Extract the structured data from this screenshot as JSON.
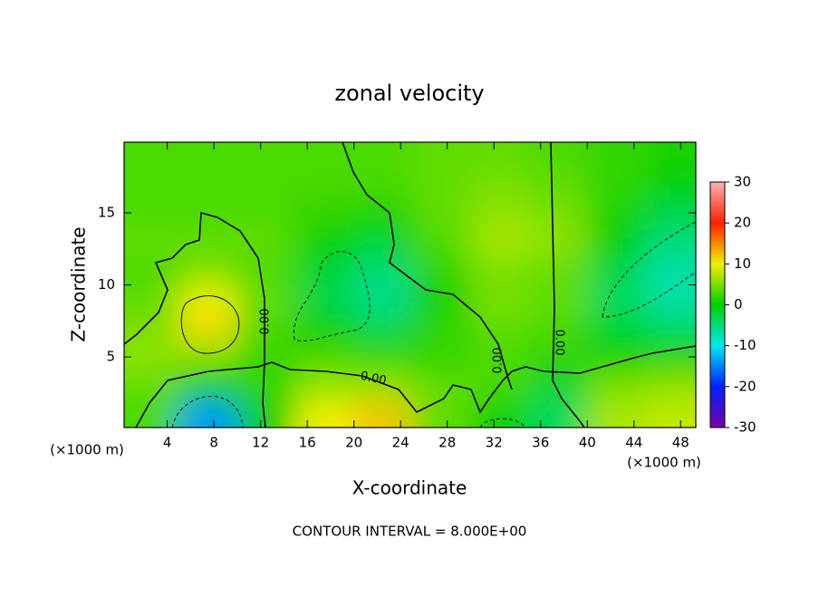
{
  "chart_data": {
    "type": "contour",
    "title": "zonal velocity",
    "x_label": "X-coordinate",
    "y_label": "Z-coordinate",
    "x_unit": "(×1000 m)",
    "footer": "CONTOUR INTERVAL = 8.000E+00",
    "contour_label": "0.00",
    "contour_levels": [
      -8,
      0,
      8
    ],
    "x": [
      2.5,
      7.5,
      12.5,
      17.5,
      22.5,
      27.5,
      32.5,
      37.5,
      42.5,
      47.5
    ],
    "y": [
      1,
      3,
      5,
      7,
      9,
      11,
      13,
      15,
      17,
      19
    ],
    "z": [
      [
        3,
        -14,
        0,
        10,
        12,
        4,
        0,
        -4,
        7,
        8
      ],
      [
        4,
        0,
        2,
        6,
        6,
        4,
        3,
        -2,
        5,
        6
      ],
      [
        6,
        5,
        2,
        3,
        2,
        2,
        3,
        2,
        0,
        1
      ],
      [
        5,
        11,
        3,
        0,
        -3,
        2,
        4,
        3,
        -2,
        -4
      ],
      [
        4,
        10,
        4,
        -3,
        -6,
        0,
        5,
        4,
        -4,
        -7
      ],
      [
        3,
        5,
        3,
        -2,
        -5,
        2,
        5,
        4,
        -3,
        -7
      ],
      [
        4,
        4,
        4,
        0,
        -2,
        3,
        7,
        6,
        0,
        -5
      ],
      [
        3,
        3,
        3,
        2,
        1,
        4,
        6,
        5,
        1,
        -3
      ],
      [
        3,
        3,
        3,
        3,
        3,
        4,
        5,
        4,
        2,
        0
      ],
      [
        3,
        3,
        3,
        3,
        3,
        4,
        4,
        3,
        2,
        1
      ]
    ],
    "xlim": [
      0.3,
      49.3
    ],
    "ylim": [
      0.1,
      19.9
    ],
    "xticks": [
      4,
      8,
      12,
      16,
      20,
      24,
      28,
      32,
      36,
      40,
      44,
      48
    ],
    "yticks": [
      5,
      10,
      15
    ],
    "clim": [
      -30,
      30
    ],
    "cticks": [
      -30,
      -20,
      -10,
      0,
      10,
      20,
      30
    ],
    "colormap": [
      "#7a00a8",
      "#0020ff",
      "#00e8f0",
      "#00d000",
      "#f0f000",
      "#ff2000",
      "#ffb0b0"
    ]
  }
}
